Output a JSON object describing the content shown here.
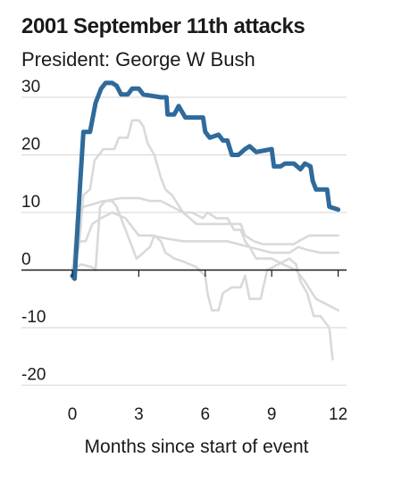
{
  "chart_data": {
    "type": "line",
    "title": "2001 September 11th attacks",
    "subtitle": "President: George W Bush",
    "xlabel": "Months since start of event",
    "ylabel": "",
    "xlim": [
      -0.5,
      12.2
    ],
    "ylim": [
      -20,
      30
    ],
    "x_ticks": [
      0,
      3,
      6,
      9,
      12
    ],
    "y_ticks": [
      30,
      20,
      10,
      0,
      -10,
      -20
    ],
    "grid": true,
    "colors": {
      "highlight": "#2f6a9c",
      "context": "#d9d9d9",
      "grid": "#dcdcdc",
      "zero": "#1a1a1a"
    },
    "series": [
      {
        "highlight": true,
        "points": [
          [
            0,
            -1
          ],
          [
            0.1,
            -1.5
          ],
          [
            0.35,
            15
          ],
          [
            0.5,
            24
          ],
          [
            0.8,
            24
          ],
          [
            1.05,
            29
          ],
          [
            1.3,
            31.5
          ],
          [
            1.5,
            32.5
          ],
          [
            1.8,
            32.5
          ],
          [
            2,
            32
          ],
          [
            2.2,
            30.5
          ],
          [
            2.5,
            30.5
          ],
          [
            2.7,
            31.5
          ],
          [
            3,
            31.5
          ],
          [
            3.2,
            30.5
          ],
          [
            4,
            30
          ],
          [
            4.25,
            30
          ],
          [
            4.3,
            27
          ],
          [
            4.6,
            27
          ],
          [
            4.8,
            28.5
          ],
          [
            5.1,
            26.5
          ],
          [
            5.9,
            26.5
          ],
          [
            6,
            24
          ],
          [
            6.2,
            23
          ],
          [
            6.6,
            23.5
          ],
          [
            6.8,
            22.5
          ],
          [
            7,
            22.5
          ],
          [
            7.2,
            20
          ],
          [
            7.5,
            20
          ],
          [
            7.8,
            21
          ],
          [
            8,
            21.5
          ],
          [
            8.3,
            20.5
          ],
          [
            9,
            21
          ],
          [
            9.1,
            18
          ],
          [
            9.4,
            18
          ],
          [
            9.6,
            18.5
          ],
          [
            10,
            18.5
          ],
          [
            10.3,
            17.5
          ],
          [
            10.5,
            18.5
          ],
          [
            10.75,
            18
          ],
          [
            10.85,
            15.5
          ],
          [
            11,
            14
          ],
          [
            11.5,
            14
          ],
          [
            11.6,
            11
          ],
          [
            12,
            10.5
          ]
        ]
      },
      {
        "highlight": false,
        "points": [
          [
            0,
            0
          ],
          [
            0.3,
            4
          ],
          [
            0.5,
            13
          ],
          [
            0.8,
            14
          ],
          [
            1,
            19
          ],
          [
            1.4,
            21
          ],
          [
            1.9,
            21
          ],
          [
            2.1,
            23
          ],
          [
            2.5,
            23
          ],
          [
            2.7,
            26
          ],
          [
            3,
            26
          ],
          [
            3.2,
            25
          ],
          [
            3.4,
            22
          ],
          [
            3.7,
            20
          ],
          [
            4,
            16
          ],
          [
            4.2,
            14
          ],
          [
            4.5,
            13
          ],
          [
            5,
            10
          ],
          [
            5.4,
            10
          ],
          [
            5.9,
            9
          ],
          [
            6.1,
            10
          ],
          [
            6.5,
            9
          ],
          [
            7,
            9
          ],
          [
            7.3,
            7
          ],
          [
            7.6,
            7
          ],
          [
            7.8,
            5
          ],
          [
            8,
            4
          ],
          [
            8.3,
            2
          ],
          [
            9,
            2
          ],
          [
            9.5,
            1
          ],
          [
            10.1,
            0
          ],
          [
            10.5,
            -2
          ],
          [
            11,
            -5
          ],
          [
            11.5,
            -6
          ],
          [
            12,
            -7
          ]
        ]
      },
      {
        "highlight": false,
        "points": [
          [
            0,
            -1
          ],
          [
            0.2,
            9
          ],
          [
            0.5,
            11
          ],
          [
            1,
            11.5
          ],
          [
            1.4,
            12
          ],
          [
            1.8,
            12
          ],
          [
            2,
            11
          ],
          [
            2.3,
            8
          ],
          [
            2.6,
            5
          ],
          [
            2.9,
            2
          ],
          [
            3.2,
            3
          ],
          [
            3.5,
            4
          ],
          [
            3.7,
            6
          ],
          [
            4,
            5
          ],
          [
            4.2,
            3
          ],
          [
            4.6,
            2
          ],
          [
            5,
            1.5
          ],
          [
            5.6,
            0.5
          ],
          [
            6,
            -1
          ],
          [
            6.1,
            -4
          ],
          [
            6.3,
            -7
          ],
          [
            6.6,
            -7
          ],
          [
            6.8,
            -4
          ],
          [
            7.2,
            -3
          ],
          [
            7.6,
            -3
          ],
          [
            7.8,
            -1
          ],
          [
            8,
            -5
          ],
          [
            8.5,
            -5
          ],
          [
            8.8,
            0
          ],
          [
            9.3,
            1
          ],
          [
            9.8,
            2
          ],
          [
            10.1,
            1
          ],
          [
            10.3,
            -2
          ],
          [
            10.6,
            -4
          ],
          [
            10.9,
            -8
          ],
          [
            11.2,
            -8
          ],
          [
            11.6,
            -10
          ],
          [
            11.75,
            -15.5
          ]
        ]
      },
      {
        "highlight": false,
        "points": [
          [
            0,
            0
          ],
          [
            0.4,
            1
          ],
          [
            0.9,
            0.5
          ],
          [
            1.05,
            0
          ],
          [
            1.25,
            11
          ],
          [
            1.5,
            12
          ],
          [
            2.2,
            12.5
          ],
          [
            3,
            12.5
          ],
          [
            3.5,
            12
          ],
          [
            4,
            12
          ],
          [
            4.5,
            11
          ],
          [
            5,
            10
          ],
          [
            5.3,
            9
          ],
          [
            5.6,
            8
          ],
          [
            6,
            8
          ],
          [
            6.5,
            8
          ],
          [
            7.6,
            8
          ],
          [
            7.8,
            6
          ],
          [
            8.2,
            5
          ],
          [
            8.6,
            4.5
          ],
          [
            9.5,
            4.5
          ],
          [
            10,
            4.5
          ],
          [
            10.2,
            5
          ],
          [
            10.7,
            6
          ],
          [
            11.5,
            6
          ],
          [
            12,
            6
          ]
        ]
      },
      {
        "highlight": false,
        "points": [
          [
            0,
            0
          ],
          [
            0.2,
            5
          ],
          [
            0.6,
            5
          ],
          [
            0.9,
            8
          ],
          [
            1.3,
            9
          ],
          [
            1.8,
            10
          ],
          [
            2.4,
            9
          ],
          [
            3,
            6
          ],
          [
            3.6,
            6
          ],
          [
            4.2,
            5.5
          ],
          [
            5,
            5
          ],
          [
            6,
            5
          ],
          [
            7,
            5
          ],
          [
            8,
            4
          ],
          [
            9,
            3
          ],
          [
            9.8,
            3
          ],
          [
            10.2,
            4
          ],
          [
            10.6,
            3.5
          ],
          [
            11.2,
            3
          ],
          [
            12,
            3
          ]
        ]
      }
    ]
  }
}
